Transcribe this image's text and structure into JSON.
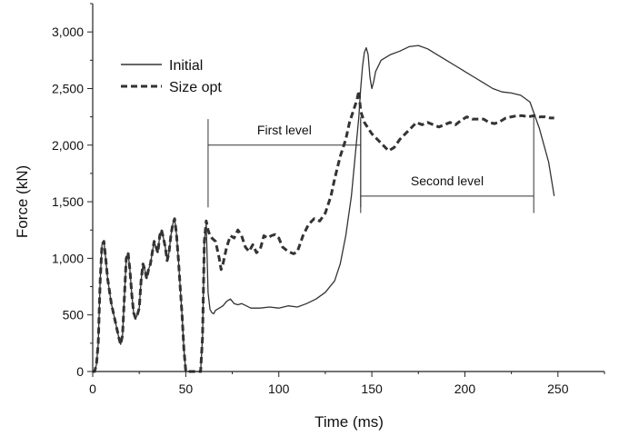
{
  "chart_data": {
    "type": "line",
    "xlabel": "Time (ms)",
    "ylabel": "Force (kN)",
    "xlim": [
      0,
      275
    ],
    "ylim": [
      0,
      3250
    ],
    "x_ticks": [
      0,
      50,
      100,
      150,
      200,
      250
    ],
    "x_tick_labels": [
      "0",
      "50",
      "100",
      "150",
      "200",
      "250"
    ],
    "y_ticks": [
      0,
      500,
      1000,
      1500,
      2000,
      2500,
      3000
    ],
    "y_tick_labels": [
      "0",
      "500",
      "1,000",
      "1,500",
      "2,000",
      "2,500",
      "3,000"
    ],
    "grid": false,
    "legend_position": "top-left",
    "series": [
      {
        "name": "Initial",
        "style": "solid",
        "color": "#333333",
        "points": [
          [
            0,
            0
          ],
          [
            1,
            0
          ],
          [
            2,
            60
          ],
          [
            3,
            250
          ],
          [
            4,
            800
          ],
          [
            5,
            1120
          ],
          [
            6,
            1150
          ],
          [
            7,
            1000
          ],
          [
            8,
            820
          ],
          [
            10,
            600
          ],
          [
            12,
            450
          ],
          [
            14,
            300
          ],
          [
            15,
            240
          ],
          [
            16,
            320
          ],
          [
            17,
            650
          ],
          [
            18,
            1000
          ],
          [
            19,
            1050
          ],
          [
            20,
            900
          ],
          [
            21,
            680
          ],
          [
            22,
            520
          ],
          [
            23,
            470
          ],
          [
            24,
            500
          ],
          [
            25,
            560
          ],
          [
            26,
            800
          ],
          [
            27,
            950
          ],
          [
            28,
            900
          ],
          [
            29,
            820
          ],
          [
            30,
            900
          ],
          [
            31,
            950
          ],
          [
            32,
            1050
          ],
          [
            33,
            1150
          ],
          [
            34,
            1100
          ],
          [
            35,
            1050
          ],
          [
            36,
            1200
          ],
          [
            37,
            1250
          ],
          [
            38,
            1180
          ],
          [
            39,
            1100
          ],
          [
            40,
            980
          ],
          [
            41,
            1050
          ],
          [
            42,
            1200
          ],
          [
            43,
            1300
          ],
          [
            44,
            1350
          ],
          [
            45,
            1220
          ],
          [
            46,
            1000
          ],
          [
            47,
            750
          ],
          [
            48,
            500
          ],
          [
            49,
            200
          ],
          [
            50,
            0
          ],
          [
            51,
            0
          ],
          [
            55,
            0
          ],
          [
            58,
            0
          ],
          [
            59,
            300
          ],
          [
            60,
            1150
          ],
          [
            61,
            1300
          ],
          [
            62,
            700
          ],
          [
            63,
            550
          ],
          [
            64,
            520
          ],
          [
            65,
            510
          ],
          [
            66,
            540
          ],
          [
            68,
            560
          ],
          [
            70,
            580
          ],
          [
            72,
            620
          ],
          [
            74,
            640
          ],
          [
            76,
            600
          ],
          [
            78,
            590
          ],
          [
            80,
            600
          ],
          [
            85,
            560
          ],
          [
            90,
            560
          ],
          [
            95,
            570
          ],
          [
            100,
            560
          ],
          [
            105,
            580
          ],
          [
            110,
            570
          ],
          [
            115,
            600
          ],
          [
            120,
            640
          ],
          [
            125,
            700
          ],
          [
            130,
            800
          ],
          [
            133,
            950
          ],
          [
            136,
            1200
          ],
          [
            139,
            1550
          ],
          [
            141,
            1900
          ],
          [
            143,
            2250
          ],
          [
            144,
            2500
          ],
          [
            145,
            2700
          ],
          [
            146,
            2820
          ],
          [
            147,
            2860
          ],
          [
            148,
            2800
          ],
          [
            149,
            2600
          ],
          [
            150,
            2500
          ],
          [
            151,
            2560
          ],
          [
            152,
            2650
          ],
          [
            155,
            2750
          ],
          [
            160,
            2800
          ],
          [
            165,
            2830
          ],
          [
            170,
            2870
          ],
          [
            175,
            2880
          ],
          [
            180,
            2850
          ],
          [
            185,
            2800
          ],
          [
            190,
            2750
          ],
          [
            195,
            2700
          ],
          [
            200,
            2650
          ],
          [
            205,
            2600
          ],
          [
            210,
            2550
          ],
          [
            215,
            2500
          ],
          [
            220,
            2470
          ],
          [
            225,
            2460
          ],
          [
            230,
            2440
          ],
          [
            235,
            2380
          ],
          [
            240,
            2150
          ],
          [
            245,
            1850
          ],
          [
            248,
            1550
          ]
        ]
      },
      {
        "name": "Size opt",
        "style": "dashed",
        "color": "#333333",
        "points": [
          [
            0,
            0
          ],
          [
            1,
            0
          ],
          [
            2,
            60
          ],
          [
            3,
            250
          ],
          [
            4,
            800
          ],
          [
            5,
            1120
          ],
          [
            6,
            1150
          ],
          [
            7,
            1000
          ],
          [
            8,
            820
          ],
          [
            10,
            600
          ],
          [
            12,
            450
          ],
          [
            14,
            300
          ],
          [
            15,
            240
          ],
          [
            16,
            320
          ],
          [
            17,
            650
          ],
          [
            18,
            1000
          ],
          [
            19,
            1050
          ],
          [
            20,
            900
          ],
          [
            21,
            680
          ],
          [
            22,
            520
          ],
          [
            23,
            470
          ],
          [
            24,
            500
          ],
          [
            25,
            560
          ],
          [
            26,
            800
          ],
          [
            27,
            950
          ],
          [
            28,
            900
          ],
          [
            29,
            820
          ],
          [
            30,
            900
          ],
          [
            31,
            950
          ],
          [
            32,
            1050
          ],
          [
            33,
            1150
          ],
          [
            34,
            1100
          ],
          [
            35,
            1050
          ],
          [
            36,
            1200
          ],
          [
            37,
            1250
          ],
          [
            38,
            1180
          ],
          [
            39,
            1100
          ],
          [
            40,
            980
          ],
          [
            41,
            1050
          ],
          [
            42,
            1200
          ],
          [
            43,
            1300
          ],
          [
            44,
            1350
          ],
          [
            45,
            1220
          ],
          [
            46,
            1000
          ],
          [
            47,
            750
          ],
          [
            48,
            500
          ],
          [
            49,
            200
          ],
          [
            50,
            0
          ],
          [
            51,
            0
          ],
          [
            55,
            0
          ],
          [
            58,
            0
          ],
          [
            59,
            300
          ],
          [
            60,
            1150
          ],
          [
            61,
            1330
          ],
          [
            62,
            1250
          ],
          [
            63,
            1200
          ],
          [
            64,
            1180
          ],
          [
            66,
            1150
          ],
          [
            68,
            1000
          ],
          [
            69,
            900
          ],
          [
            70,
            950
          ],
          [
            72,
            1100
          ],
          [
            74,
            1200
          ],
          [
            76,
            1180
          ],
          [
            78,
            1250
          ],
          [
            80,
            1200
          ],
          [
            82,
            1100
          ],
          [
            84,
            1060
          ],
          [
            86,
            1120
          ],
          [
            88,
            1050
          ],
          [
            90,
            1080
          ],
          [
            92,
            1200
          ],
          [
            94,
            1180
          ],
          [
            96,
            1200
          ],
          [
            98,
            1210
          ],
          [
            100,
            1180
          ],
          [
            102,
            1100
          ],
          [
            105,
            1060
          ],
          [
            108,
            1040
          ],
          [
            110,
            1060
          ],
          [
            113,
            1200
          ],
          [
            116,
            1300
          ],
          [
            119,
            1350
          ],
          [
            122,
            1330
          ],
          [
            125,
            1400
          ],
          [
            128,
            1550
          ],
          [
            130,
            1700
          ],
          [
            133,
            1900
          ],
          [
            136,
            2050
          ],
          [
            138,
            2200
          ],
          [
            140,
            2300
          ],
          [
            142,
            2400
          ],
          [
            143,
            2480
          ],
          [
            144,
            2300
          ],
          [
            146,
            2200
          ],
          [
            148,
            2150
          ],
          [
            150,
            2100
          ],
          [
            153,
            2050
          ],
          [
            156,
            2000
          ],
          [
            159,
            1950
          ],
          [
            162,
            1980
          ],
          [
            165,
            2050
          ],
          [
            168,
            2100
          ],
          [
            171,
            2150
          ],
          [
            174,
            2200
          ],
          [
            177,
            2180
          ],
          [
            180,
            2200
          ],
          [
            183,
            2180
          ],
          [
            186,
            2160
          ],
          [
            189,
            2180
          ],
          [
            192,
            2200
          ],
          [
            195,
            2180
          ],
          [
            198,
            2220
          ],
          [
            201,
            2250
          ],
          [
            204,
            2230
          ],
          [
            207,
            2230
          ],
          [
            210,
            2230
          ],
          [
            213,
            2200
          ],
          [
            216,
            2190
          ],
          [
            219,
            2210
          ],
          [
            222,
            2240
          ],
          [
            225,
            2250
          ],
          [
            228,
            2260
          ],
          [
            231,
            2260
          ],
          [
            234,
            2250
          ],
          [
            237,
            2260
          ],
          [
            240,
            2250
          ],
          [
            243,
            2250
          ],
          [
            246,
            2240
          ],
          [
            248,
            2240
          ]
        ]
      }
    ],
    "annotations": [
      {
        "label": "First level",
        "x_start": 62,
        "x_end": 144,
        "y": 2000,
        "tick_low": 1450,
        "tick_high": 2230
      },
      {
        "label": "Second level",
        "x_start": 144,
        "x_end": 237,
        "y": 1550,
        "tick_low": 1400,
        "tick_high": 2250
      }
    ]
  }
}
